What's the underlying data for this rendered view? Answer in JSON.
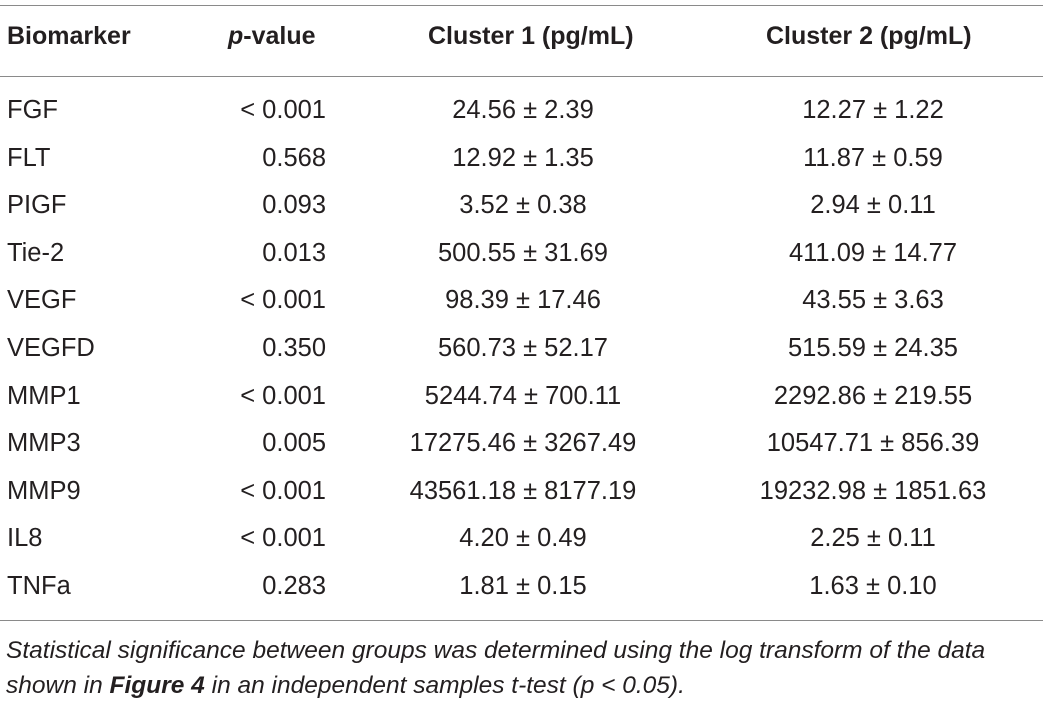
{
  "table": {
    "headers": {
      "biomarker": "Biomarker",
      "p_prefix": "p",
      "p_suffix": "-value",
      "cluster1": "Cluster 1 (pg/mL)",
      "cluster2": "Cluster 2 (pg/mL)"
    },
    "rows": [
      {
        "biomarker": "FGF",
        "p": "< 0.001",
        "cluster1": "24.56 ± 2.39",
        "cluster2": "12.27 ± 1.22"
      },
      {
        "biomarker": "FLT",
        "p": "0.568",
        "cluster1": "12.92 ± 1.35",
        "cluster2": "11.87 ± 0.59"
      },
      {
        "biomarker": "PIGF",
        "p": "0.093",
        "cluster1": "3.52 ± 0.38",
        "cluster2": "2.94 ± 0.11"
      },
      {
        "biomarker": "Tie-2",
        "p": "0.013",
        "cluster1": "500.55 ± 31.69",
        "cluster2": "411.09 ± 14.77"
      },
      {
        "biomarker": "VEGF",
        "p": "< 0.001",
        "cluster1": "98.39 ± 17.46",
        "cluster2": "43.55 ± 3.63"
      },
      {
        "biomarker": "VEGFD",
        "p": "0.350",
        "cluster1": "560.73 ± 52.17",
        "cluster2": "515.59 ± 24.35"
      },
      {
        "biomarker": "MMP1",
        "p": "< 0.001",
        "cluster1": "5244.74 ± 700.11",
        "cluster2": "2292.86 ± 219.55"
      },
      {
        "biomarker": "MMP3",
        "p": "0.005",
        "cluster1": "17275.46 ± 3267.49",
        "cluster2": "10547.71 ± 856.39"
      },
      {
        "biomarker": "MMP9",
        "p": "< 0.001",
        "cluster1": "43561.18 ± 8177.19",
        "cluster2": "19232.98 ± 1851.63"
      },
      {
        "biomarker": "IL8",
        "p": "< 0.001",
        "cluster1": "4.20 ± 0.49",
        "cluster2": "2.25 ± 0.11"
      },
      {
        "biomarker": "TNFa",
        "p": "0.283",
        "cluster1": "1.81 ± 0.15",
        "cluster2": "1.63 ± 0.10"
      }
    ]
  },
  "footnote": {
    "before": "Statistical significance between groups was determined using the log transform of the data shown in ",
    "figure_ref": "Figure 4",
    "after": " in an independent samples t-test (p < 0.05)."
  }
}
